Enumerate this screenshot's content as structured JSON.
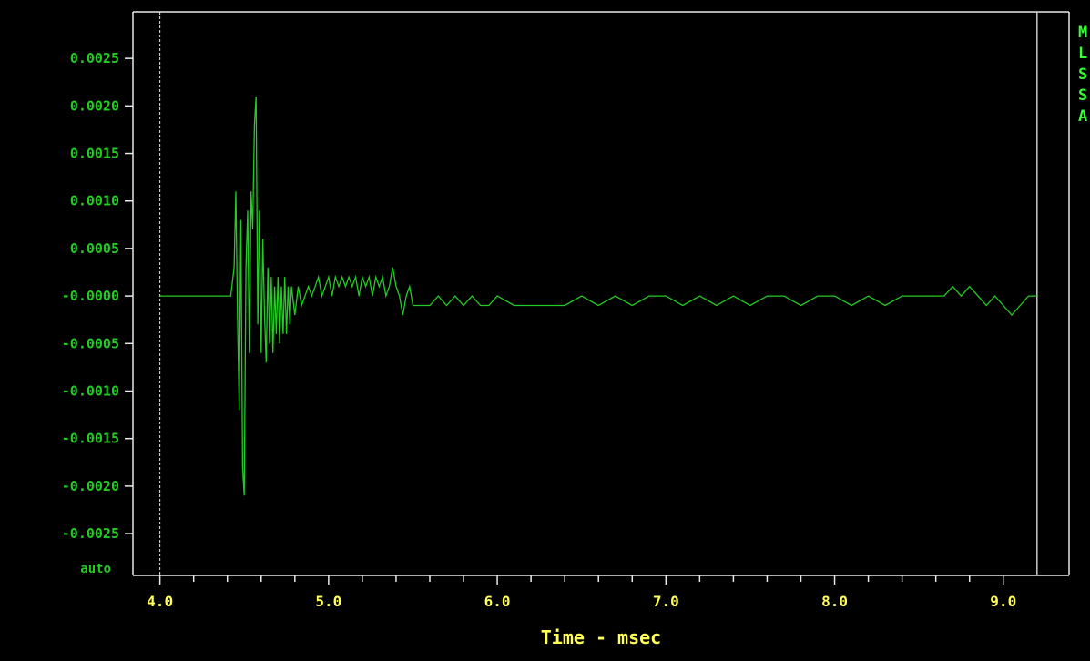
{
  "colors": {
    "background": "#000000",
    "frame": "#e8e8e8",
    "trace": "#22cc22",
    "y_text": "#22cc22",
    "x_text": "#ffff55",
    "side_text": "#33ff33"
  },
  "scale_mode_label": "auto",
  "side_panel": {
    "letters": [
      "M",
      "L",
      "S",
      "S",
      "A"
    ]
  },
  "chart_data": {
    "type": "line",
    "xlabel": "Time - msec",
    "ylabel": "",
    "x_ticks": [
      "4.0",
      "5.0",
      "6.0",
      "7.0",
      "8.0",
      "9.0"
    ],
    "y_ticks": [
      "0.0025",
      "0.0020",
      "0.0015",
      "0.0010",
      "0.0005",
      "-0.0000",
      "-0.0005",
      "-0.0010",
      "-0.0015",
      "-0.0020",
      "-0.0025"
    ],
    "xlim": [
      3.84,
      9.39
    ],
    "ylim": [
      -0.00294,
      0.00299
    ],
    "grid": false,
    "legend": "none",
    "markers": [
      4.0,
      9.2
    ],
    "series": [
      {
        "x": [
          4.0,
          4.42,
          4.44,
          4.45,
          4.46,
          4.47,
          4.48,
          4.49,
          4.5,
          4.51,
          4.52,
          4.53,
          4.54,
          4.55,
          4.56,
          4.57,
          4.58,
          4.59,
          4.6,
          4.61,
          4.62,
          4.63,
          4.64,
          4.65,
          4.66,
          4.67,
          4.68,
          4.69,
          4.7,
          4.71,
          4.72,
          4.73,
          4.74,
          4.75,
          4.76,
          4.77,
          4.78,
          4.8,
          4.82,
          4.84,
          4.86,
          4.88,
          4.9,
          4.92,
          4.94,
          4.96,
          4.98,
          5.0,
          5.02,
          5.04,
          5.06,
          5.08,
          5.1,
          5.12,
          5.14,
          5.16,
          5.18,
          5.2,
          5.22,
          5.24,
          5.26,
          5.28,
          5.3,
          5.32,
          5.34,
          5.36,
          5.38,
          5.4,
          5.42,
          5.44,
          5.46,
          5.48,
          5.5,
          5.55,
          5.6,
          5.65,
          5.7,
          5.75,
          5.8,
          5.85,
          5.9,
          5.95,
          6.0,
          6.1,
          6.2,
          6.3,
          6.4,
          6.5,
          6.6,
          6.7,
          6.8,
          6.9,
          7.0,
          7.1,
          7.2,
          7.3,
          7.4,
          7.5,
          7.6,
          7.7,
          7.8,
          7.9,
          8.0,
          8.1,
          8.2,
          8.3,
          8.4,
          8.5,
          8.6,
          8.65,
          8.7,
          8.75,
          8.8,
          8.85,
          8.9,
          8.95,
          9.0,
          9.05,
          9.1,
          9.15,
          9.2
        ],
        "y": [
          0.0,
          0.0,
          0.0003,
          0.0011,
          -0.0002,
          -0.0012,
          0.0008,
          -0.0018,
          -0.0021,
          0.0003,
          0.0009,
          -0.0006,
          0.0011,
          0.0007,
          0.0018,
          0.0021,
          -0.0003,
          0.0009,
          -0.0006,
          0.0006,
          -0.0002,
          -0.0007,
          0.0003,
          -0.0005,
          0.0002,
          -0.0006,
          0.0001,
          -0.0004,
          0.0002,
          -0.0005,
          0.0001,
          -0.0004,
          0.0002,
          -0.0004,
          0.0001,
          -0.0003,
          0.0001,
          -0.0002,
          0.0001,
          -0.0001,
          0.0,
          0.0001,
          0.0,
          0.0001,
          0.0002,
          0.0,
          0.0001,
          0.0002,
          0.0,
          0.0002,
          0.0001,
          0.0002,
          0.0001,
          0.0002,
          0.0001,
          0.0002,
          0.0,
          0.0002,
          0.0001,
          0.0002,
          0.0,
          0.0002,
          0.0001,
          0.0002,
          0.0,
          0.0001,
          0.0003,
          0.0001,
          0.0,
          -0.0002,
          0.0,
          0.0001,
          -0.0001,
          -0.0001,
          -0.0001,
          0.0,
          -0.0001,
          0.0,
          -0.0001,
          0.0,
          -0.0001,
          -0.0001,
          0.0,
          -0.0001,
          -0.0001,
          -0.0001,
          -0.0001,
          0.0,
          -0.0001,
          0.0,
          -0.0001,
          0.0,
          0.0,
          -0.0001,
          0.0,
          -0.0001,
          0.0,
          -0.0001,
          0.0,
          0.0,
          -0.0001,
          0.0,
          0.0,
          -0.0001,
          0.0,
          -0.0001,
          0.0,
          0.0,
          0.0,
          0.0,
          0.0001,
          0.0,
          0.0001,
          0.0,
          -0.0001,
          0.0,
          -0.0001,
          -0.0002,
          -0.0001,
          0.0,
          0.0
        ]
      }
    ]
  }
}
